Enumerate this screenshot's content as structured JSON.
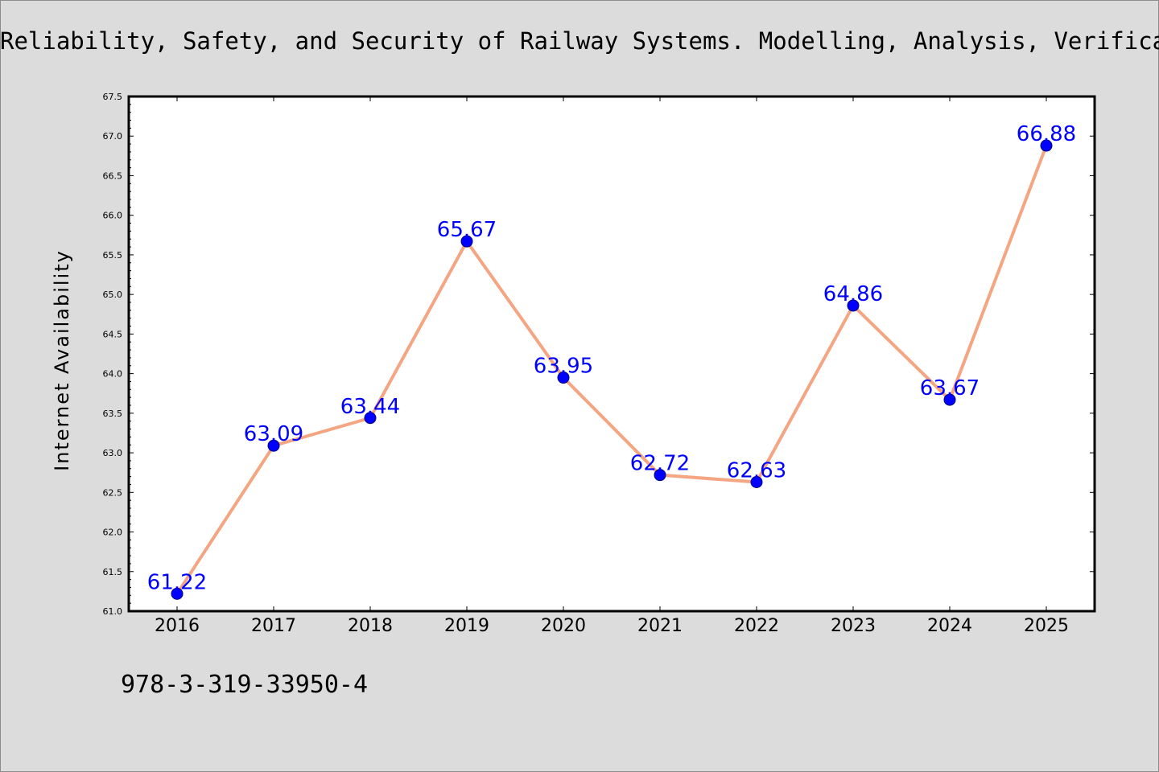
{
  "chart_data": {
    "type": "line",
    "title": "Reliability, Safety, and Security of Railway Systems. Modelling, Analysis, Verification, and Certification",
    "xlabel": "",
    "ylabel": "Internet Availability",
    "categories": [
      "2016",
      "2017",
      "2018",
      "2019",
      "2020",
      "2021",
      "2022",
      "2023",
      "2024",
      "2025"
    ],
    "series": [
      {
        "values": [
          61.22,
          63.09,
          63.44,
          65.67,
          63.95,
          62.72,
          62.63,
          64.86,
          63.67,
          66.88
        ]
      }
    ],
    "data_labels": [
      "61.22",
      "63.09",
      "63.44",
      "65.67",
      "63.95",
      "62.72",
      "62.63",
      "64.86",
      "63.67",
      "66.88"
    ],
    "ylim": [
      61.0,
      67.5
    ],
    "yticks": [
      "61.0",
      "61.5",
      "62.0",
      "62.5",
      "63.0",
      "63.5",
      "64.0",
      "64.5",
      "65.0",
      "65.5",
      "66.0",
      "66.5",
      "67.0",
      "67.5"
    ],
    "grid": false,
    "legend": "none",
    "colors": {
      "line": "#f4a582",
      "marker": "#0000ff",
      "marker_edge": "#000080",
      "label": "#0000ff",
      "plot_bg": "#ffffff"
    }
  },
  "footer": {
    "isbn": "978-3-319-33950-4"
  }
}
